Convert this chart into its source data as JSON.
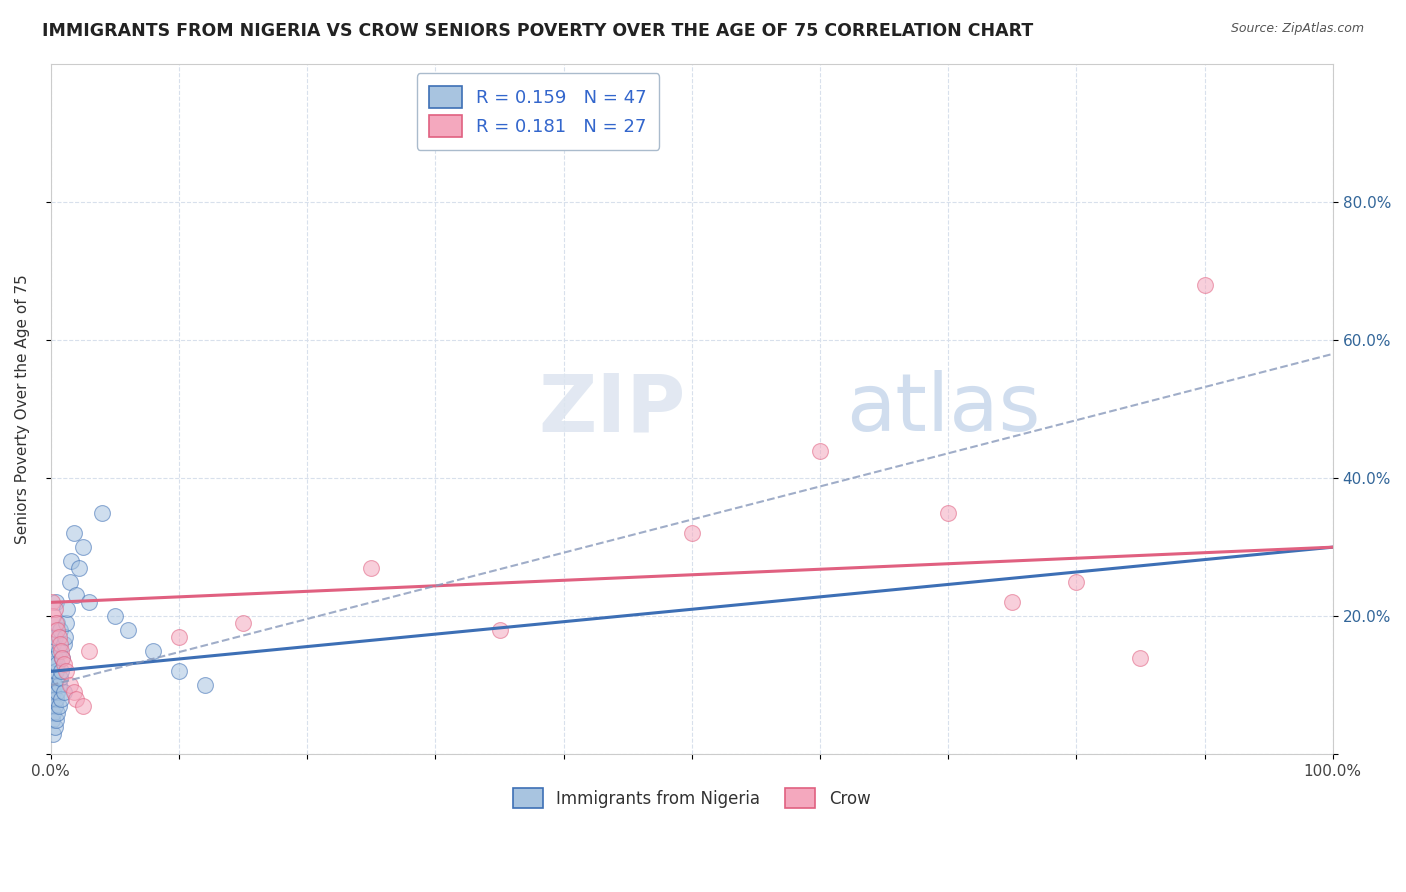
{
  "title": "IMMIGRANTS FROM NIGERIA VS CROW SENIORS POVERTY OVER THE AGE OF 75 CORRELATION CHART",
  "source": "Source: ZipAtlas.com",
  "ylabel": "Seniors Poverty Over the Age of 75",
  "xlabel": "",
  "xlim": [
    0,
    1.0
  ],
  "ylim": [
    0,
    1.0
  ],
  "xticks": [
    0.0,
    0.1,
    0.2,
    0.3,
    0.4,
    0.5,
    0.6,
    0.7,
    0.8,
    0.9,
    1.0
  ],
  "xticklabels": [
    "0.0%",
    "",
    "",
    "",
    "",
    "",
    "",
    "",
    "",
    "",
    "100.0%"
  ],
  "ytick_positions": [
    0.0,
    0.2,
    0.4,
    0.6,
    0.8
  ],
  "yticklabels": [
    "",
    "20.0%",
    "40.0%",
    "60.0%",
    "80.0%"
  ],
  "blue_color": "#a8c4e0",
  "pink_color": "#f4a8be",
  "blue_line_color": "#3d6fb5",
  "pink_line_color": "#e06080",
  "title_color": "#222222",
  "background_color": "#ffffff",
  "grid_color": "#d8e0ec",
  "marker_size": 130,
  "alpha": 0.55,
  "blue_scatter_x": [
    0.001,
    0.001,
    0.002,
    0.002,
    0.002,
    0.002,
    0.002,
    0.003,
    0.003,
    0.003,
    0.003,
    0.004,
    0.004,
    0.004,
    0.005,
    0.005,
    0.005,
    0.006,
    0.006,
    0.007,
    0.007,
    0.008,
    0.009,
    0.01,
    0.011,
    0.012,
    0.013,
    0.015,
    0.016,
    0.018,
    0.02,
    0.022,
    0.025,
    0.03,
    0.04,
    0.05,
    0.06,
    0.08,
    0.1,
    0.12,
    0.002,
    0.003,
    0.004,
    0.005,
    0.006,
    0.008,
    0.01
  ],
  "blue_scatter_y": [
    0.05,
    0.08,
    0.06,
    0.09,
    0.11,
    0.13,
    0.16,
    0.07,
    0.1,
    0.14,
    0.17,
    0.08,
    0.12,
    0.22,
    0.09,
    0.13,
    0.19,
    0.1,
    0.15,
    0.11,
    0.18,
    0.12,
    0.14,
    0.16,
    0.17,
    0.19,
    0.21,
    0.25,
    0.28,
    0.32,
    0.23,
    0.27,
    0.3,
    0.22,
    0.35,
    0.2,
    0.18,
    0.15,
    0.12,
    0.1,
    0.03,
    0.04,
    0.05,
    0.06,
    0.07,
    0.08,
    0.09
  ],
  "pink_scatter_x": [
    0.001,
    0.002,
    0.003,
    0.004,
    0.005,
    0.006,
    0.007,
    0.008,
    0.009,
    0.01,
    0.012,
    0.015,
    0.018,
    0.02,
    0.025,
    0.03,
    0.1,
    0.15,
    0.25,
    0.35,
    0.5,
    0.6,
    0.7,
    0.75,
    0.8,
    0.85,
    0.9
  ],
  "pink_scatter_y": [
    0.22,
    0.2,
    0.21,
    0.19,
    0.18,
    0.17,
    0.16,
    0.15,
    0.14,
    0.13,
    0.12,
    0.1,
    0.09,
    0.08,
    0.07,
    0.15,
    0.17,
    0.19,
    0.27,
    0.18,
    0.32,
    0.44,
    0.35,
    0.22,
    0.25,
    0.14,
    0.68
  ],
  "blue_line_x0": 0.0,
  "blue_line_y0": 0.12,
  "blue_line_x1": 1.0,
  "blue_line_y1": 0.3,
  "pink_line_x0": 0.0,
  "pink_line_y0": 0.22,
  "pink_line_x1": 1.0,
  "pink_line_y1": 0.3,
  "dash_line_x0": 0.0,
  "dash_line_y0": 0.1,
  "dash_line_x1": 1.0,
  "dash_line_y1": 0.58
}
